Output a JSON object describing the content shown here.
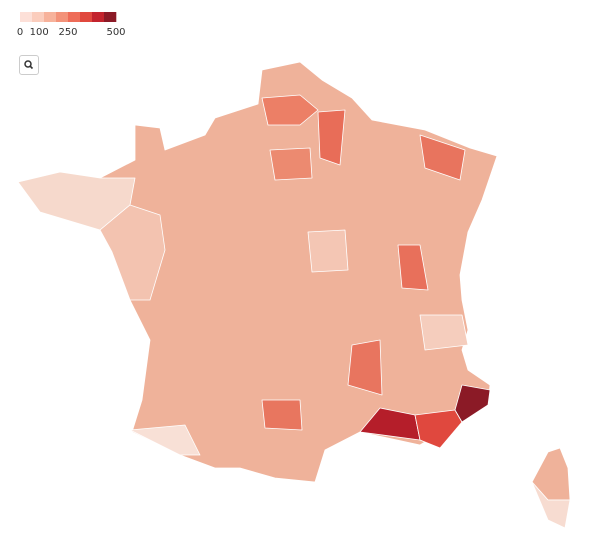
{
  "legend": {
    "range": [
      0,
      500
    ],
    "ticks": [
      0,
      100,
      250,
      500
    ],
    "colors": [
      "#fde0d8",
      "#fbcdbd",
      "#f7b29b",
      "#f39279",
      "#ee6c58",
      "#e0483e",
      "#c3232d",
      "#8b1a26"
    ]
  }
}
